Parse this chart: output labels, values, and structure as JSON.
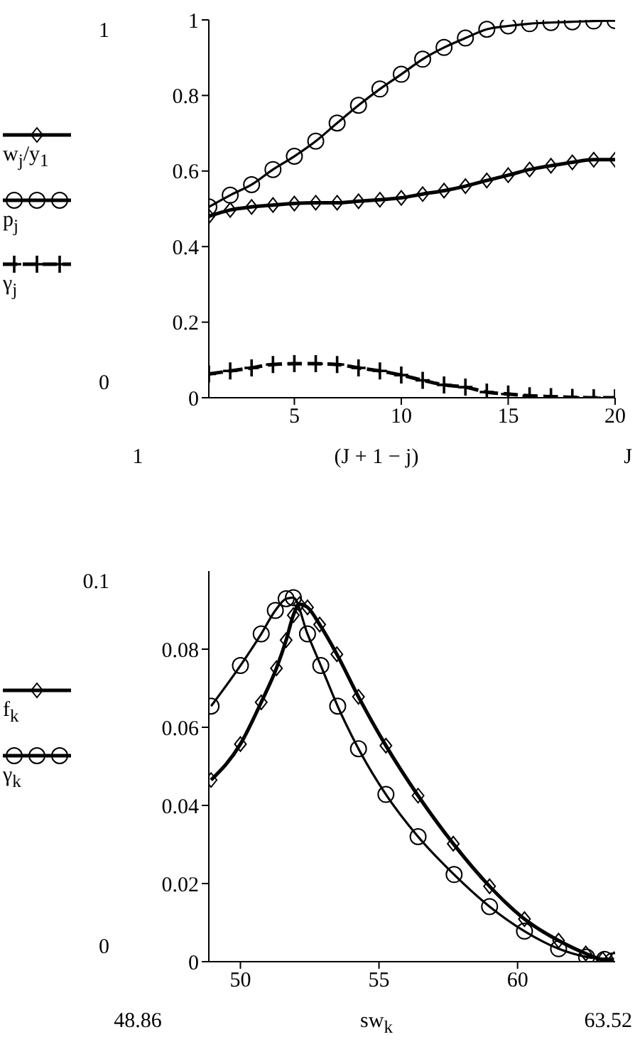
{
  "chart_data": [
    {
      "type": "line",
      "xlabel": "(J + 1 − j)",
      "xlim": [
        1,
        20
      ],
      "xticks": [
        5,
        10,
        15,
        20
      ],
      "ylim": [
        0,
        1
      ],
      "yticks": [
        0,
        0.2,
        0.4,
        0.6,
        0.8,
        1
      ],
      "legend": "left",
      "grid": false,
      "annotations": [
        "1",
        "0",
        "1",
        "J"
      ],
      "x": [
        1,
        2,
        3,
        4,
        5,
        6,
        7,
        8,
        9,
        10,
        11,
        12,
        13,
        14,
        15,
        16,
        17,
        18,
        19,
        20
      ],
      "series": [
        {
          "name": "w$_{j}$/y$_{1}$",
          "color": "#000000",
          "marker": "diamond",
          "line_style": "solid",
          "values": [
            0.48,
            0.497,
            0.505,
            0.51,
            0.514,
            0.516,
            0.516,
            0.52,
            0.524,
            0.529,
            0.539,
            0.548,
            0.56,
            0.575,
            0.589,
            0.604,
            0.614,
            0.623,
            0.63,
            0.63
          ]
        },
        {
          "name": "p$_{j}$",
          "color": "#000000",
          "marker": "circle",
          "line_style": "solid",
          "values": [
            0.505,
            0.536,
            0.564,
            0.604,
            0.639,
            0.679,
            0.727,
            0.774,
            0.817,
            0.856,
            0.896,
            0.927,
            0.952,
            0.975,
            0.984,
            0.99,
            0.993,
            0.995,
            0.997,
            0.998
          ]
        },
        {
          "name": "γ$_{j}$",
          "color": "#000000",
          "marker": "cross",
          "line_style": "dashed",
          "values": [
            0.063,
            0.071,
            0.079,
            0.088,
            0.09,
            0.09,
            0.088,
            0.079,
            0.071,
            0.06,
            0.046,
            0.034,
            0.028,
            0.015,
            0.01,
            0.005,
            0.003,
            0.001,
            0,
            0
          ]
        }
      ]
    },
    {
      "type": "line",
      "xlabel": "sw$_{k}$",
      "xlim": [
        48.86,
        63.52
      ],
      "xticks": [
        50,
        55,
        60
      ],
      "ylim": [
        0,
        0.1
      ],
      "yticks": [
        0,
        0.02,
        0.04,
        0.06,
        0.08
      ],
      "legend": "left",
      "grid": false,
      "annotations": [
        "0.1",
        "0",
        "48.86",
        "63.52"
      ],
      "series": [
        {
          "name": "f$_{k}$",
          "color": "#000000",
          "marker": "diamond",
          "line_style": "solid",
          "x": [
            48.94,
            50.0,
            50.75,
            51.3,
            51.65,
            51.91,
            52.13,
            52.42,
            52.86,
            53.48,
            54.26,
            55.25,
            56.41,
            57.68,
            58.99,
            60.25,
            61.48,
            62.46,
            63.07,
            63.48
          ],
          "values": [
            0.0465,
            0.0557,
            0.0664,
            0.0751,
            0.0823,
            0.0887,
            0.0915,
            0.0907,
            0.0863,
            0.0787,
            0.0678,
            0.0553,
            0.0425,
            0.0302,
            0.0193,
            0.0109,
            0.0054,
            0.0021,
            0.0006,
            0.0006
          ]
        },
        {
          "name": "γ$_{k}$",
          "color": "#000000",
          "marker": "circle",
          "line_style": "solid",
          "x": [
            48.94,
            50.0,
            50.75,
            51.26,
            51.65,
            51.91,
            52.42,
            52.9,
            53.51,
            54.26,
            55.25,
            56.41,
            57.71,
            58.99,
            60.25,
            61.48,
            62.49,
            63.14,
            63.43
          ],
          "values": [
            0.0654,
            0.0758,
            0.0839,
            0.0899,
            0.0929,
            0.0932,
            0.0839,
            0.0758,
            0.0654,
            0.0545,
            0.0428,
            0.032,
            0.0223,
            0.0141,
            0.0078,
            0.0033,
            0.0012,
            0.0006,
            0.0002
          ]
        }
      ]
    }
  ]
}
